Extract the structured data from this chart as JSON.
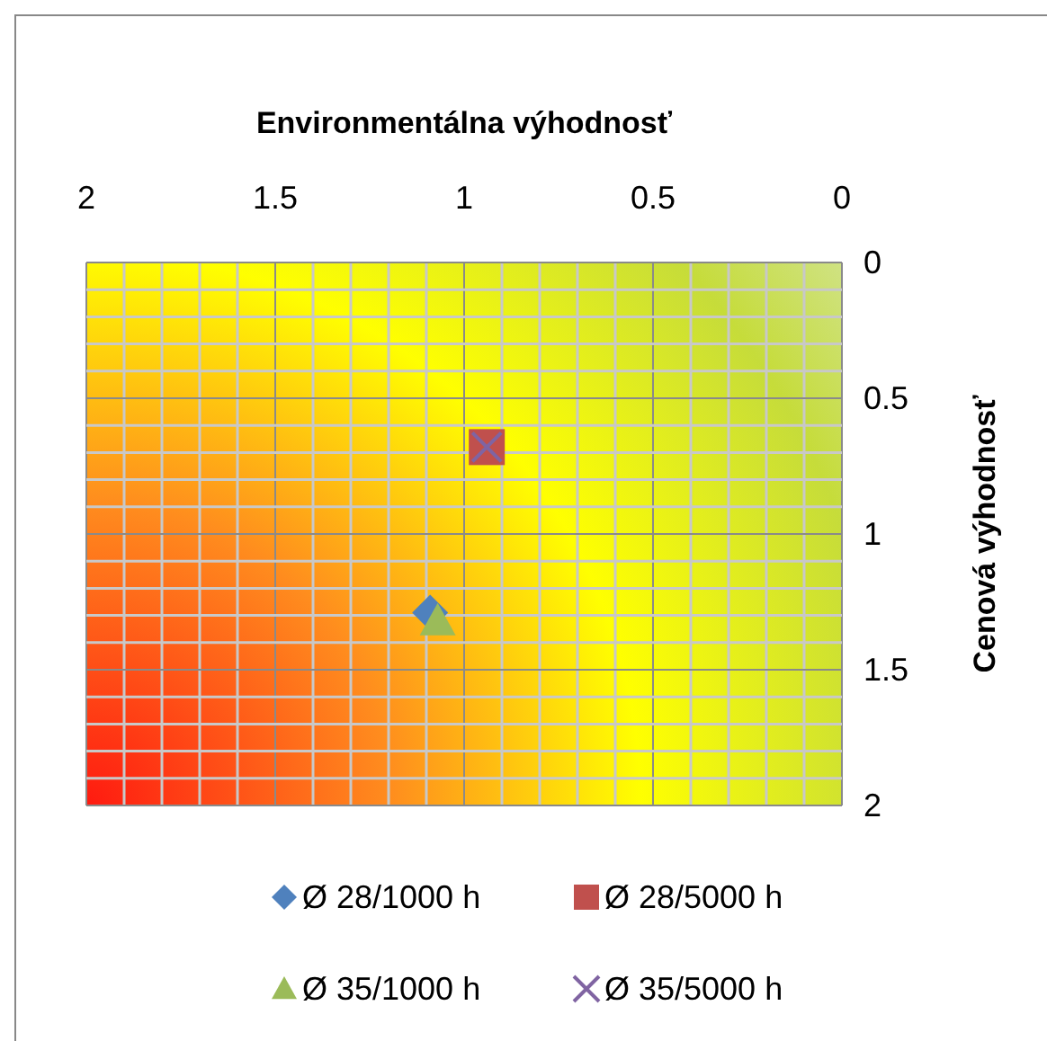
{
  "chart_data": {
    "type": "scatter",
    "xlabel": "Environmentálna výhodnosť",
    "ylabel": "Cenová výhodnosť",
    "xlim": [
      2,
      0
    ],
    "ylim": [
      2,
      0
    ],
    "xticks": [
      2,
      {
        "value": 1.9,
        "label": null
      },
      {
        "value": 1.8,
        "label": null
      },
      {
        "value": 1.7,
        "label": null
      },
      {
        "value": 1.6,
        "label": null
      },
      1.5,
      {
        "value": 1.4,
        "label": null
      },
      {
        "value": 1.3,
        "label": null
      },
      {
        "value": 1.2,
        "label": null
      },
      {
        "value": 1.1,
        "label": null
      },
      1,
      {
        "value": 0.9,
        "label": null
      },
      {
        "value": 0.8,
        "label": null
      },
      {
        "value": 0.7,
        "label": null
      },
      {
        "value": 0.6,
        "label": null
      },
      0.5,
      {
        "value": 0.4,
        "label": null
      },
      {
        "value": 0.3,
        "label": null
      },
      {
        "value": 0.2,
        "label": null
      },
      {
        "value": 0.1,
        "label": null
      },
      0
    ],
    "yticks": [
      2,
      {
        "value": 1.9,
        "label": null
      },
      {
        "value": 1.8,
        "label": null
      },
      {
        "value": 1.7,
        "label": null
      },
      {
        "value": 1.6,
        "label": null
      },
      1.5,
      {
        "value": 1.4,
        "label": null
      },
      {
        "value": 1.3,
        "label": null
      },
      {
        "value": 1.2,
        "label": null
      },
      {
        "value": 1.1,
        "label": null
      },
      1,
      {
        "value": 0.9,
        "label": null
      },
      {
        "value": 0.8,
        "label": null
      },
      {
        "value": 0.7,
        "label": null
      },
      {
        "value": 0.6,
        "label": null
      },
      0.5,
      {
        "value": 0.4,
        "label": null
      },
      {
        "value": 0.3,
        "label": null
      },
      {
        "value": 0.2,
        "label": null
      },
      {
        "value": 0.1,
        "label": null
      },
      0
    ],
    "grid": true,
    "legend": "bottom",
    "series": [
      {
        "name": "Ø 28/1000 h",
        "color": "#4f81bd",
        "marker": "diamond",
        "x": [
          1.09
        ],
        "values": [
          1.29
        ]
      },
      {
        "name": "Ø 28/5000 h",
        "color": "#c0504d",
        "marker": "square",
        "x": [
          0.94
        ],
        "values": [
          0.68
        ]
      },
      {
        "name": "Ø 35/1000 h",
        "color": "#9bbb59",
        "marker": "triangle",
        "x": [
          1.07
        ],
        "values": [
          1.32
        ]
      },
      {
        "name": "Ø 35/5000 h",
        "color": "#8064a2",
        "marker": "cross",
        "x": [
          0.94
        ],
        "values": [
          0.68
        ]
      }
    ]
  }
}
